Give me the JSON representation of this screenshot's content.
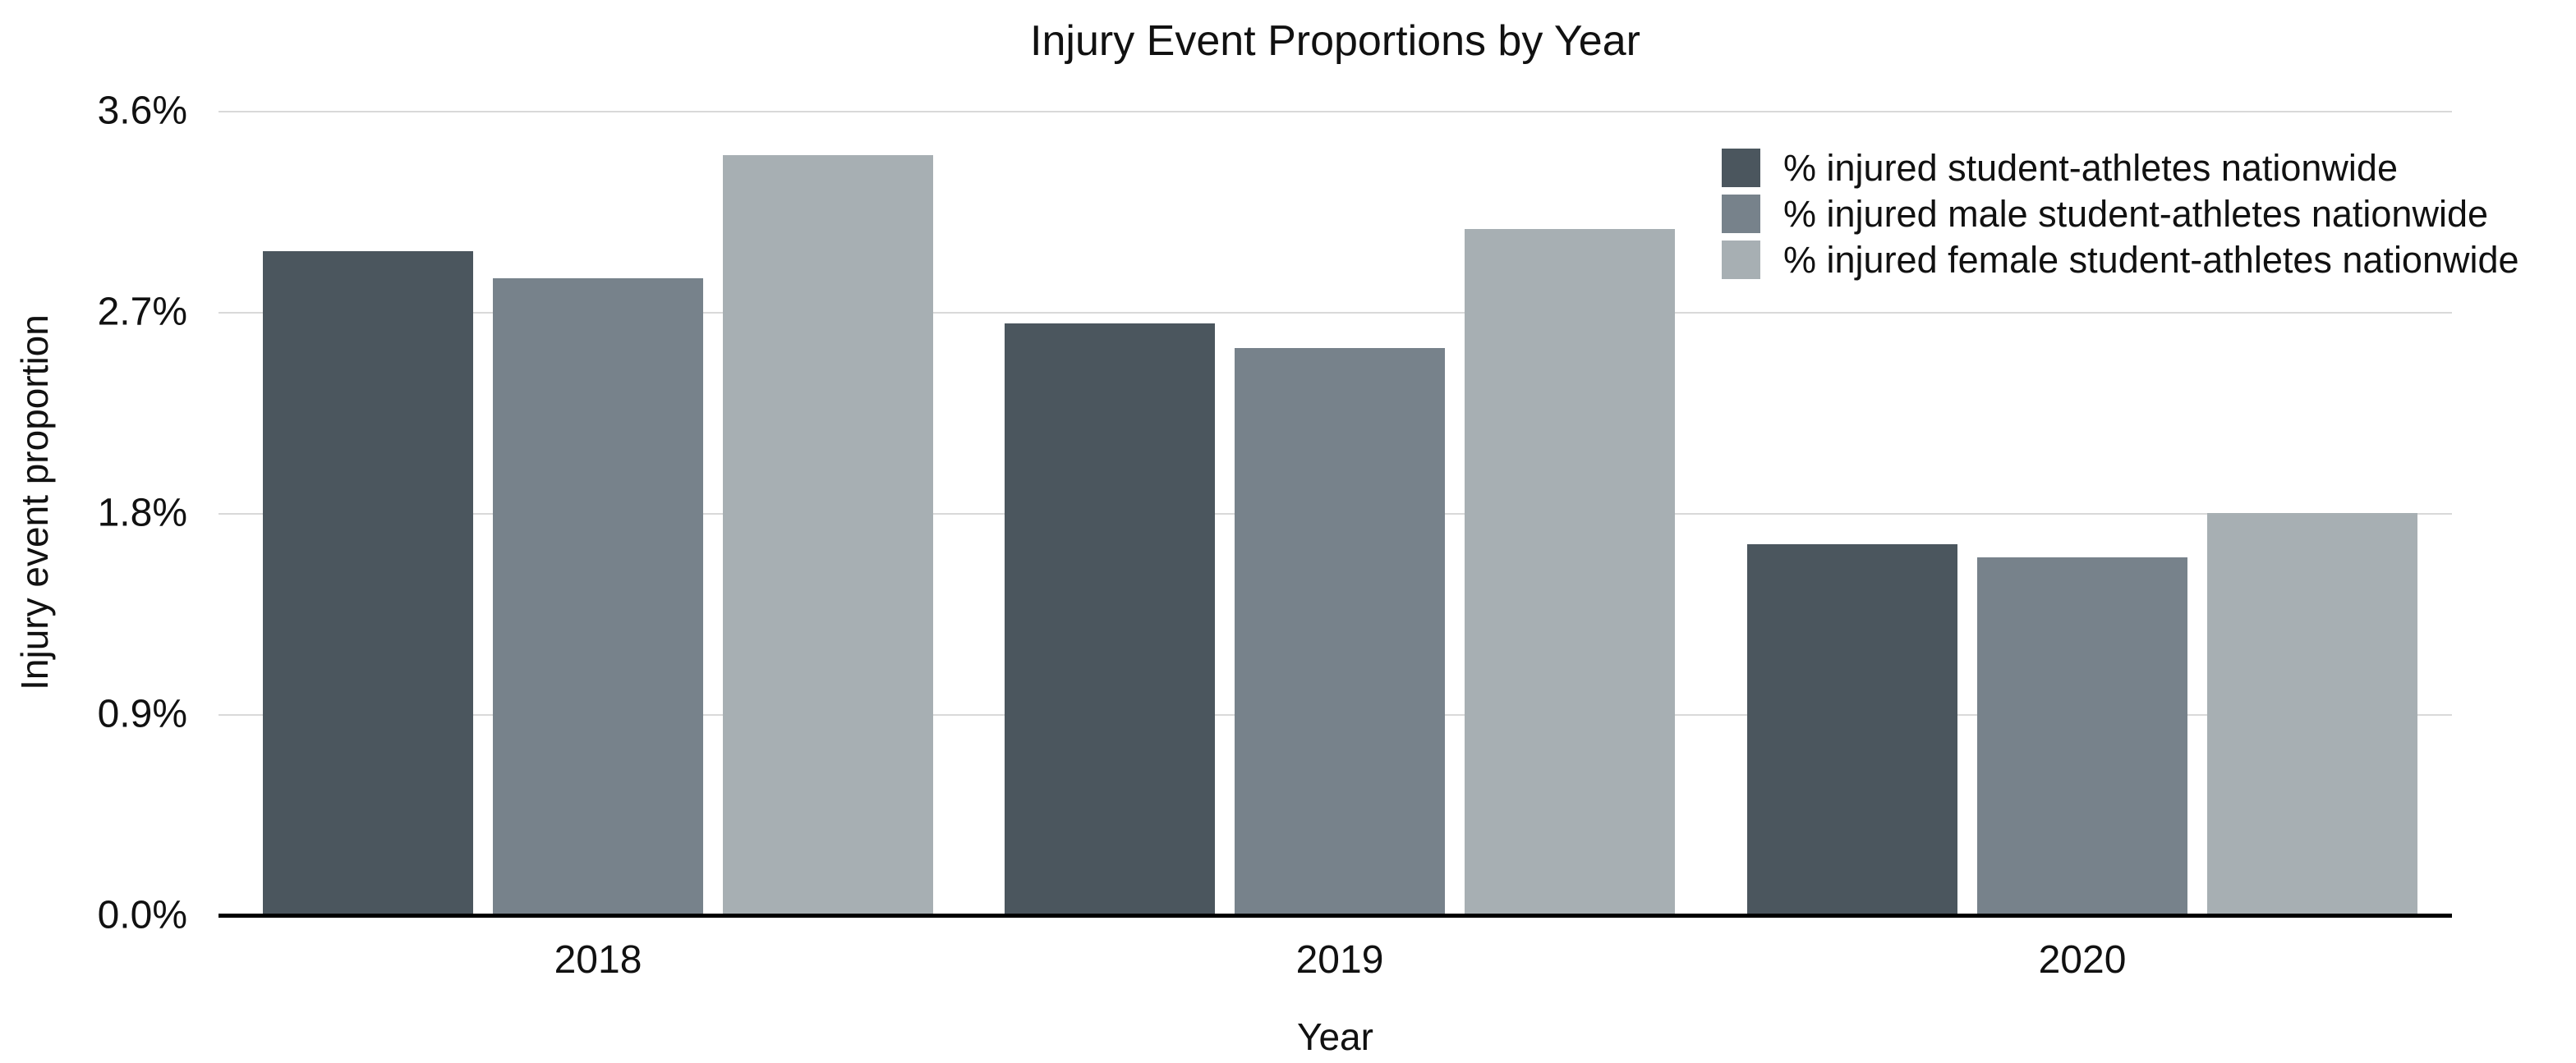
{
  "chart_data": {
    "type": "bar",
    "title": "Injury Event Proportions by Year",
    "xlabel": "Year",
    "ylabel": "Injury event proportion",
    "categories": [
      "2018",
      "2019",
      "2020"
    ],
    "series": [
      {
        "name": "% injured student-athletes nationwide",
        "key": "nationwide",
        "color": "#4B565E",
        "values": [
          2.97,
          2.65,
          1.66
        ]
      },
      {
        "name": "% injured male student-athletes nationwide",
        "key": "male",
        "color": "#77828B",
        "values": [
          2.85,
          2.54,
          1.6
        ]
      },
      {
        "name": "% injured female student-athletes nationwide",
        "key": "female",
        "color": "#A7AFB3",
        "values": [
          3.4,
          3.07,
          1.8
        ]
      }
    ],
    "yticks": [
      {
        "value": 0.0,
        "label": "0.0%"
      },
      {
        "value": 0.9,
        "label": "0.9%"
      },
      {
        "value": 1.8,
        "label": "1.8%"
      },
      {
        "value": 2.7,
        "label": "2.7%"
      },
      {
        "value": 3.6,
        "label": "3.6%"
      }
    ],
    "ylim": [
      0,
      3.6
    ],
    "grid": "horizontal",
    "legend_position": "top-right"
  },
  "colors": {
    "background": "#FFFFFF",
    "gridline": "#D9D9D9",
    "axis": "#000000",
    "text": "#111111"
  }
}
